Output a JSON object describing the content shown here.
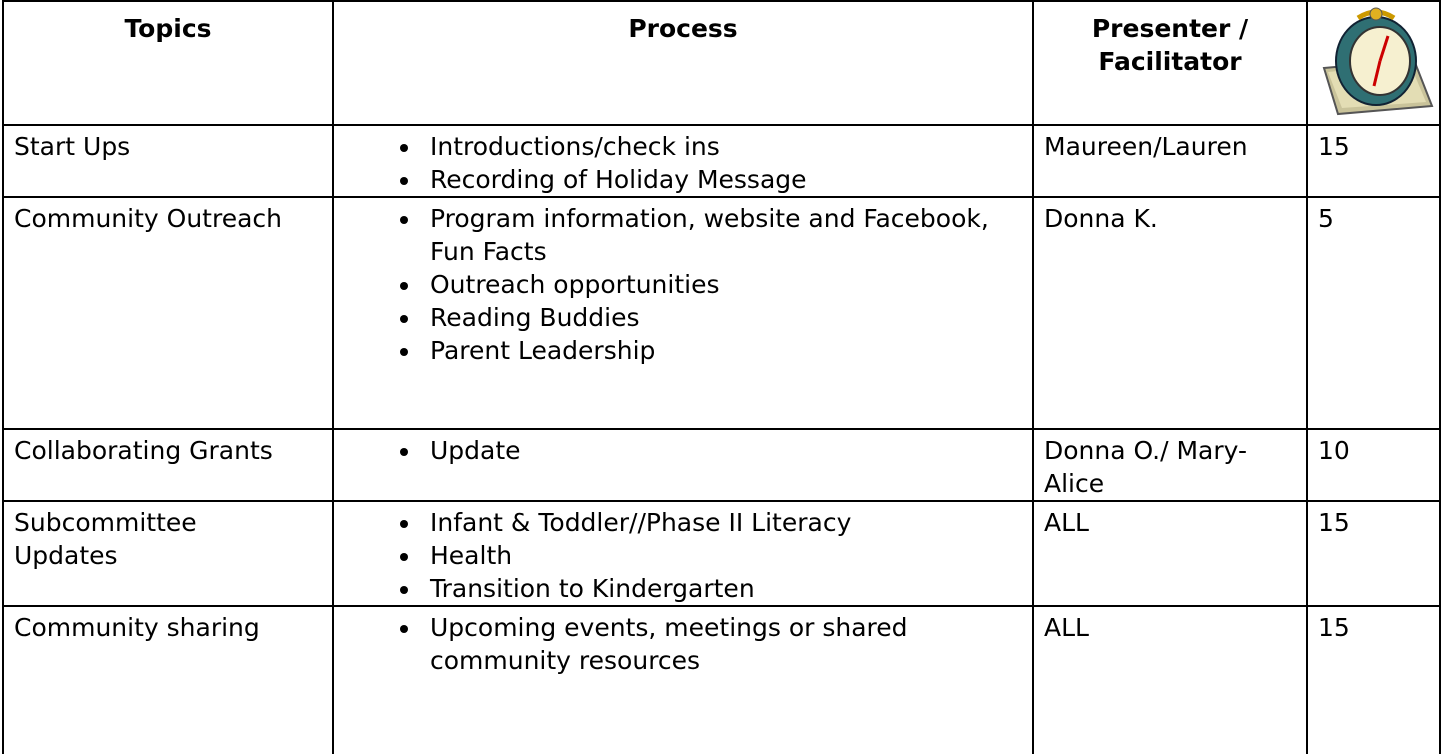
{
  "header": [
    "Topics",
    "Process",
    "Presenter / Facilitator"
  ],
  "rows": [
    {
      "topic": "Start Ups",
      "items": [
        "Introductions/check ins",
        "Recording of Holiday Message"
      ],
      "presenter": "Maureen/Lauren",
      "minutes": 15
    },
    {
      "topic": "Community Outreach",
      "items": [
        "Program information, website and Facebook, Fun Facts",
        "Outreach opportunities",
        "Reading Buddies",
        "Parent Leadership"
      ],
      "presenter": "Donna K.",
      "minutes": 5
    },
    {
      "topic": "Collaborating Grants",
      "items": [
        "Update"
      ],
      "presenter": "Donna O./ Mary-Alice",
      "minutes": 10
    },
    {
      "topic": "Subcommittee Updates",
      "items": [
        "Infant & Toddler//Phase II Literacy",
        "Health",
        "Transition to Kindergarten"
      ],
      "presenter": "ALL",
      "minutes": 15
    },
    {
      "topic": "Community sharing",
      "items": [
        "Upcoming events, meetings or shared community resources"
      ],
      "presenter": "ALL",
      "minutes": 15
    }
  ]
}
